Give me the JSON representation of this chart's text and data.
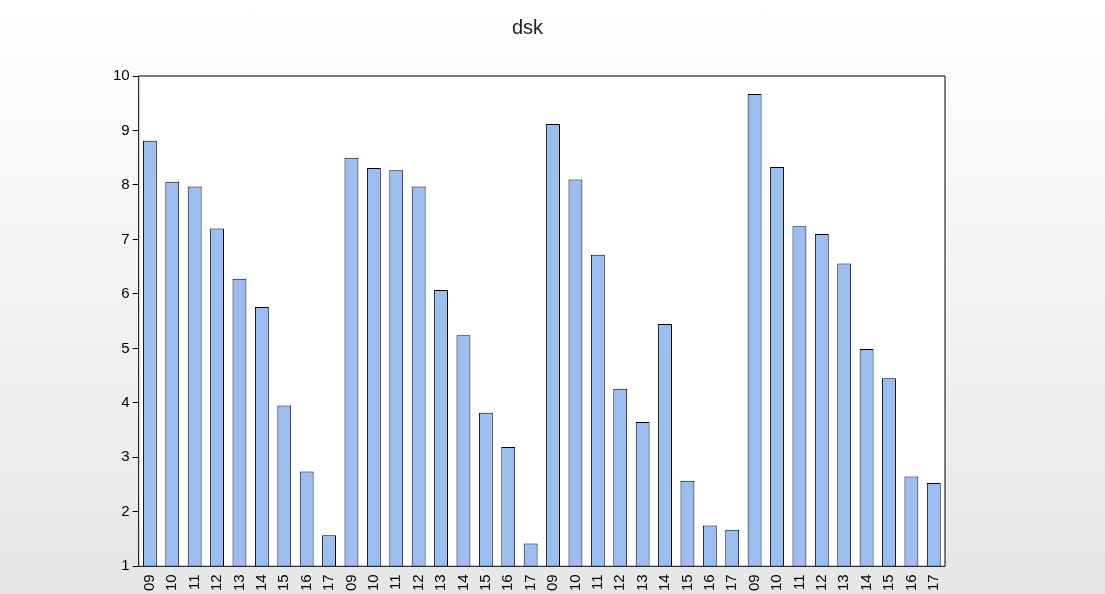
{
  "chart_data": {
    "type": "bar",
    "title": "dsk",
    "categories": [
      "09",
      "10",
      "11",
      "12",
      "13",
      "14",
      "15",
      "16",
      "17",
      "09",
      "10",
      "11",
      "12",
      "13",
      "14",
      "15",
      "16",
      "17",
      "09",
      "10",
      "11",
      "12",
      "13",
      "14",
      "15",
      "16",
      "17",
      "09",
      "10",
      "11",
      "12",
      "13",
      "14",
      "15",
      "16",
      "17"
    ],
    "values": [
      8.81,
      8.06,
      7.97,
      7.2,
      6.28,
      5.76,
      3.95,
      2.74,
      1.57,
      8.5,
      8.31,
      8.27,
      7.97,
      6.07,
      5.24,
      3.82,
      3.19,
      1.42,
      9.12,
      8.1,
      6.72,
      4.26,
      3.65,
      5.45,
      2.57,
      1.75,
      1.67,
      9.67,
      8.33,
      7.24,
      7.1,
      6.56,
      4.99,
      4.45,
      2.65,
      2.53
    ],
    "color": "#9bbdf2",
    "ylim": [
      1,
      10
    ],
    "yticks": [
      1,
      2,
      3,
      4,
      5,
      6,
      7,
      8,
      9,
      10
    ],
    "grid": false,
    "legend": false
  }
}
